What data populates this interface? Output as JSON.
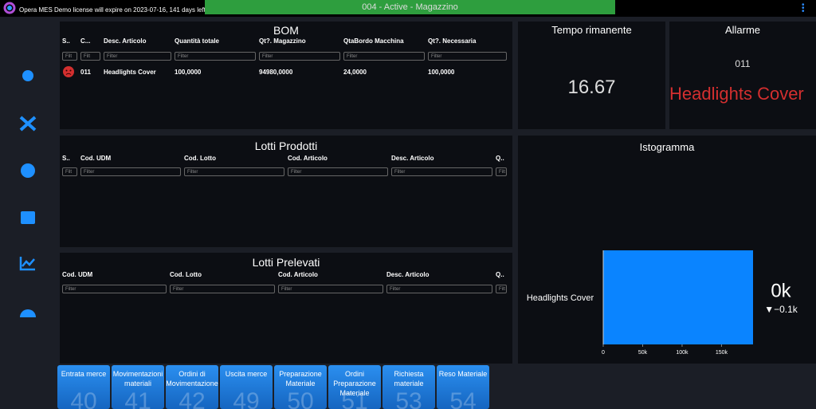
{
  "header": {
    "license": "Opera MES Demo license will expire on 2023-07-16, 141 days left",
    "status": "004 - Active - Magazzino"
  },
  "bom": {
    "title": "BOM",
    "columns": [
      "S..",
      "C...",
      "Desc. Articolo",
      "Quantità totale",
      "Qt?. Magazzino",
      "QtaBordo Macchina",
      "Qt?. Necessaria"
    ],
    "filters": [
      "Filt",
      "Filt",
      "Filter",
      "Filter",
      "Filter",
      "Filter",
      "Filter"
    ],
    "rows": [
      [
        "",
        "011",
        "Headlights Cover",
        "100,0000",
        "94980,0000",
        "24,0000",
        "100,0000"
      ]
    ]
  },
  "tempo": {
    "title": "Tempo rimanente",
    "value": "16.67"
  },
  "allarme": {
    "title": "Allarme",
    "code": "011",
    "text": "Headlights Cover"
  },
  "lotti_prodotti": {
    "title": "Lotti Prodotti",
    "columns": [
      "S..",
      "Cod. UDM",
      "Cod. Lotto",
      "Cod. Articolo",
      "Desc. Articolo",
      "Q.."
    ],
    "filters": [
      "Filt",
      "Filter",
      "Filter",
      "Filter",
      "Filter",
      "Filt"
    ],
    "rows": []
  },
  "lotti_prelevati": {
    "title": "Lotti Prelevati",
    "columns": [
      "Cod. UDM",
      "Cod. Lotto",
      "Cod. Articolo",
      "Desc. Articolo",
      "Q.."
    ],
    "filters": [
      "Filter",
      "Filter",
      "Filter",
      "Filter",
      "Filt"
    ],
    "rows": []
  },
  "istogramma": {
    "title": "Istogramma",
    "kpi": "0k",
    "delta": "▼−0.1k",
    "chart": {
      "type": "bar",
      "categories": [
        "Headlights Cover"
      ],
      "values": [
        190000
      ],
      "color": "#0a84ff",
      "xlim": [
        0,
        190000
      ],
      "xticks": [
        0,
        {
          "value": 50000,
          "label": "50k"
        },
        {
          "value": 100000,
          "label": "100k"
        },
        {
          "value": 150000,
          "label": "150k"
        }
      ]
    }
  },
  "buttons": [
    {
      "label": "Entrata merce",
      "count": "40"
    },
    {
      "label": "Movimentazioni materiali",
      "count": "41"
    },
    {
      "label": "Ordini di Movimentazione",
      "count": "42"
    },
    {
      "label": "Uscita merce",
      "count": "49"
    },
    {
      "label": "Preparazione Materiale",
      "count": "50"
    },
    {
      "label": "Ordini Preparazione Materiale",
      "count": "51"
    },
    {
      "label": "Richiesta materiale",
      "count": "53"
    },
    {
      "label": "Reso Materiale",
      "count": "54"
    }
  ]
}
